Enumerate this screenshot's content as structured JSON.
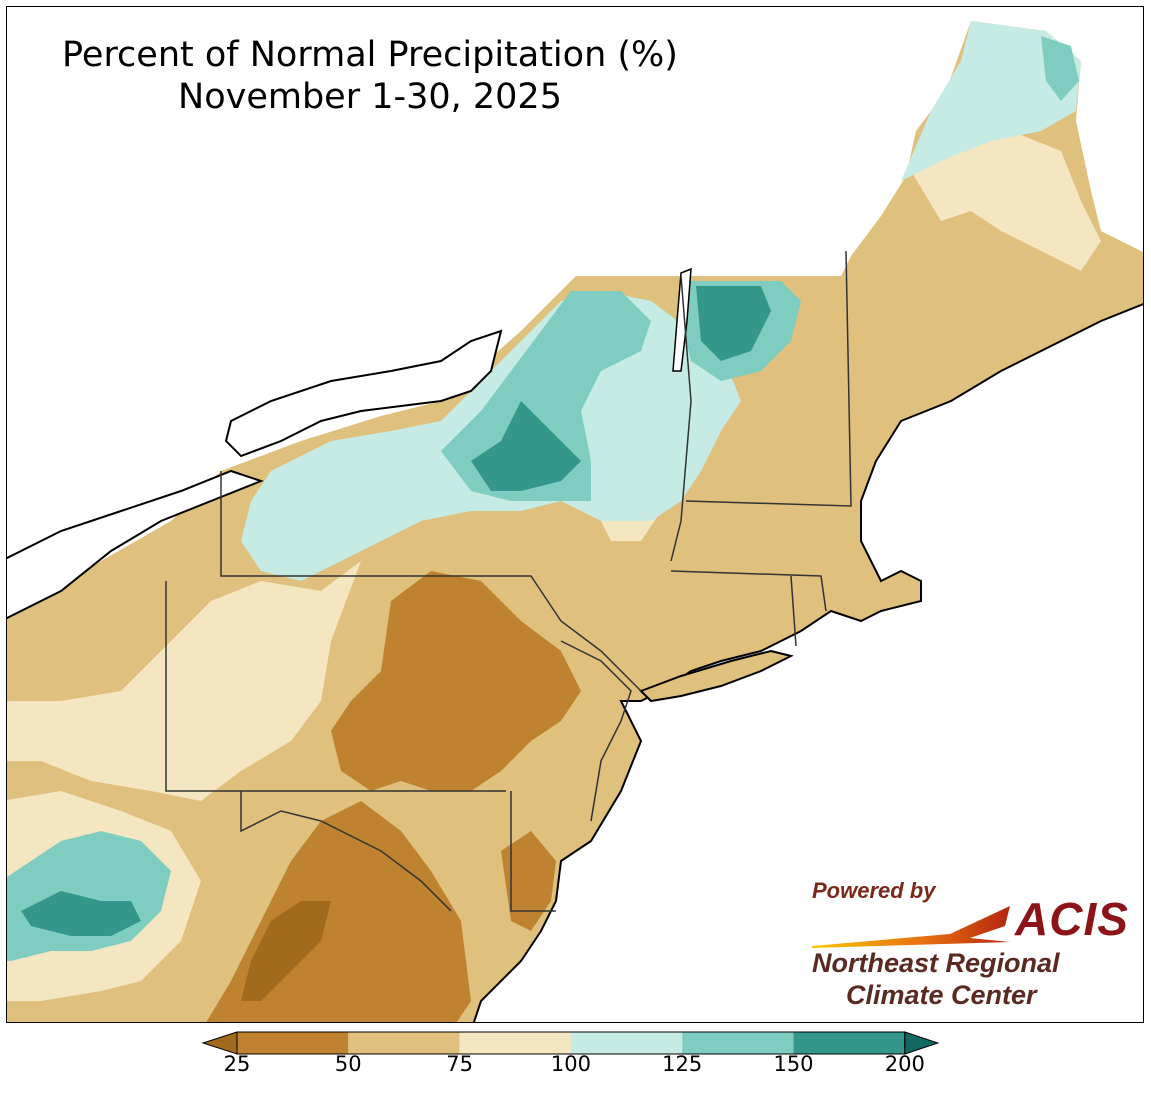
{
  "title": {
    "line1": "Percent of Normal Precipitation (%)",
    "line2": "November 1-30, 2025"
  },
  "legend": {
    "ticks": [
      "25",
      "50",
      "75",
      "100",
      "125",
      "150",
      "200"
    ],
    "classes": [
      {
        "range": "25-50",
        "color": "#bf8230"
      },
      {
        "range": "50-75",
        "color": "#dfc07c"
      },
      {
        "range": "75-100",
        "color": "#f5e6c2"
      },
      {
        "range": "100-125",
        "color": "#c6ebe4"
      },
      {
        "range": "125-150",
        "color": "#7ecdc0"
      },
      {
        "range": "150-200",
        "color": "#35968c"
      }
    ],
    "under_color": "#a26a1c",
    "over_color": "#116a61",
    "extends": "both"
  },
  "logo": {
    "powered_by": "Powered by",
    "acis": "ACIS",
    "org_line1": "Northeast Regional",
    "org_line2": "Climate Center"
  },
  "colors": {
    "very_dry": "#a26a1c",
    "dry": "#bf8230",
    "below": "#dfc07c",
    "near_below": "#f5e6c2",
    "near_above": "#c6ebe4",
    "above": "#7ecdc0",
    "well_above": "#35968c",
    "wettest": "#116a61",
    "water": "#ffffff",
    "border": "#000000"
  }
}
